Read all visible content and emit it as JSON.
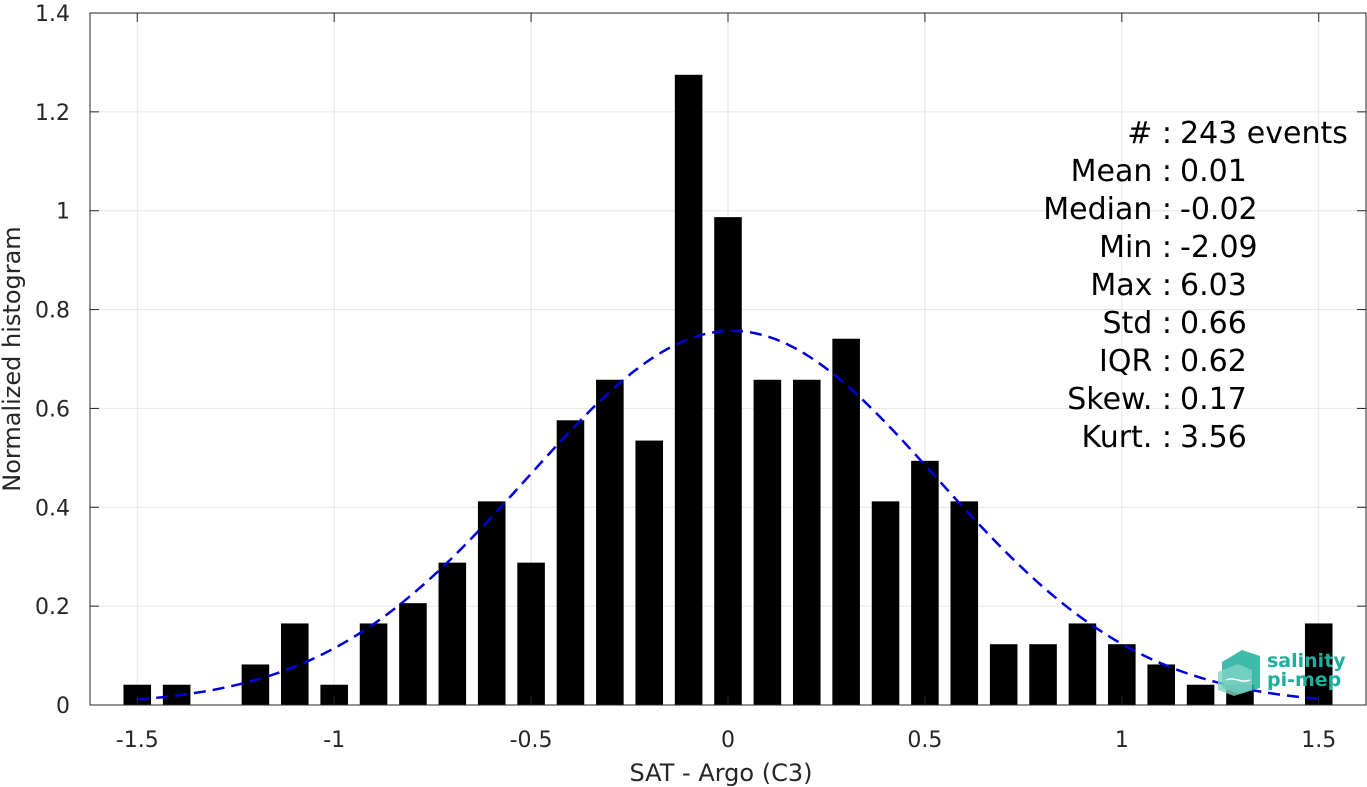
{
  "chart_data": {
    "type": "bar",
    "xlabel": "SAT - Argo (C3)",
    "ylabel": "Normalized histogram",
    "xlim": [
      -1.62,
      1.62
    ],
    "ylim": [
      0,
      1.4
    ],
    "xticks": [
      -1.5,
      -1,
      -0.5,
      0,
      0.5,
      1,
      1.5
    ],
    "xtick_labels": [
      "-1.5",
      "-1",
      "-0.5",
      "0",
      "0.5",
      "1",
      "1.5"
    ],
    "yticks": [
      0,
      0.2,
      0.4,
      0.6,
      0.8,
      1,
      1.2,
      1.4
    ],
    "ytick_labels": [
      "0",
      "0.2",
      "0.4",
      "0.6",
      "0.8",
      "1",
      "1.2",
      "1.4"
    ],
    "grid": true,
    "bar_width": 0.07,
    "bar_color": "#000000",
    "x": [
      -1.5,
      -1.4,
      -1.2,
      -1.1,
      -1.0,
      -0.9,
      -0.8,
      -0.7,
      -0.6,
      -0.5,
      -0.4,
      -0.3,
      -0.2,
      -0.1,
      0.0,
      0.1,
      0.2,
      0.3,
      0.4,
      0.5,
      0.6,
      0.7,
      0.8,
      0.9,
      1.0,
      1.1,
      1.2,
      1.3,
      1.5
    ],
    "values": [
      0.041,
      0.041,
      0.082,
      0.165,
      0.041,
      0.165,
      0.206,
      0.288,
      0.412,
      0.288,
      0.576,
      0.658,
      0.535,
      1.275,
      0.987,
      0.658,
      0.658,
      0.741,
      0.412,
      0.494,
      0.412,
      0.123,
      0.123,
      0.165,
      0.123,
      0.082,
      0.041,
      0.041,
      0.165
    ],
    "fit": {
      "type": "gaussian",
      "mean": 0.01,
      "std": 0.52,
      "peak": 0.757,
      "x_range": [
        -1.5,
        1.5
      ],
      "color": "#0000dd",
      "style": "dashed"
    },
    "stats": [
      {
        "label": "#",
        "sep": "  :",
        "value": "243 events"
      },
      {
        "label": "Mean",
        "sep": " :",
        "value": "0.01"
      },
      {
        "label": "Median",
        "sep": " :",
        "value": "-0.02"
      },
      {
        "label": "Min",
        "sep": " :",
        "value": "-2.09"
      },
      {
        "label": "Max",
        "sep": " :",
        "value": "6.03"
      },
      {
        "label": "Std",
        "sep": " :",
        "value": "0.66"
      },
      {
        "label": "IQR",
        "sep": " :",
        "value": "0.62"
      },
      {
        "label": "Skew.",
        "sep": " :",
        "value": "0.17"
      },
      {
        "label": "Kurt.",
        "sep": " :",
        "value": "3.56"
      }
    ]
  },
  "logo": {
    "line1": "salinity",
    "line2": "pi-mep",
    "color": "#1fae9c"
  }
}
